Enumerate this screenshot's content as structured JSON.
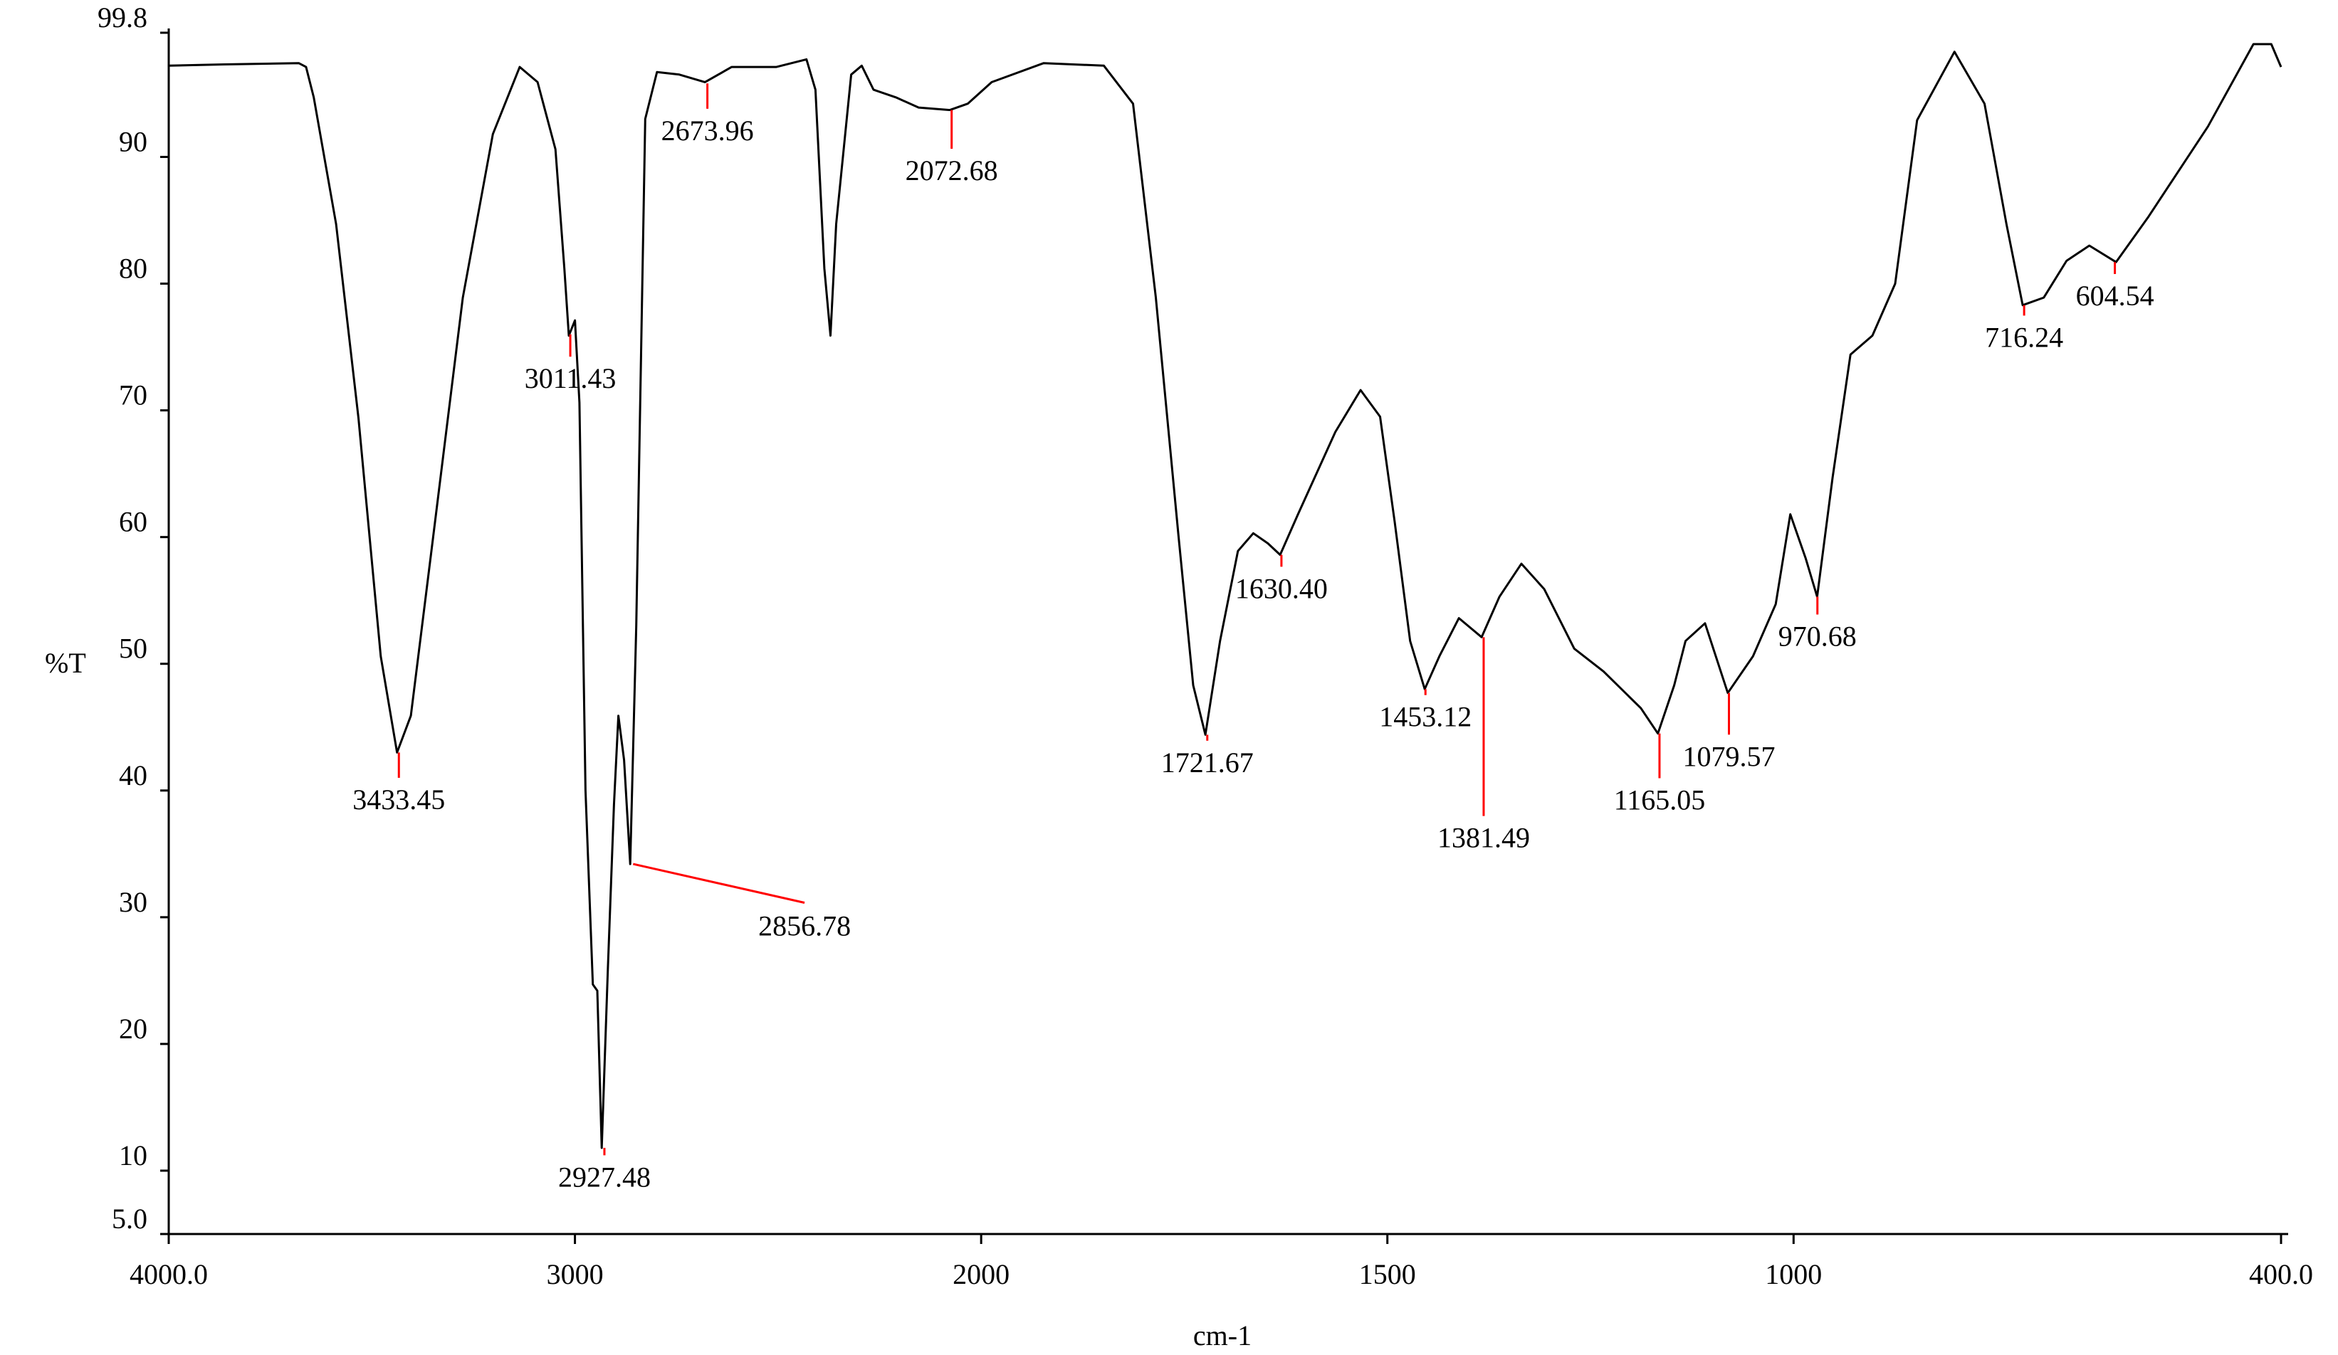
{
  "chart_data": {
    "type": "line",
    "x_label": "cm-1",
    "y_label": "%T",
    "color": "#000000",
    "peak_color": "#ff0000",
    "xlim": [
      4000,
      400
    ],
    "xscale": {
      "type": "split",
      "at": 2000,
      "factor": 2
    },
    "xticks": [
      {
        "value": 4000,
        "label": "4000.0"
      },
      3000,
      2000,
      1500,
      1000,
      {
        "value": 400,
        "label": "400.0"
      }
    ],
    "ylim": [
      5,
      99.8
    ],
    "yticks": [
      {
        "value": 5,
        "label": "5.0"
      },
      10,
      20,
      30,
      40,
      50,
      60,
      70,
      80,
      90,
      99.8
    ],
    "x": [
      4000,
      3864,
      3680,
      3662,
      3643,
      3588,
      3533,
      3478,
      3438,
      3404,
      3349,
      3276,
      3202,
      3136,
      3092,
      3048,
      3026,
      3015,
      3000,
      2989,
      2974,
      2956,
      2945,
      2934,
      2919,
      2904,
      2893,
      2879,
      2864,
      2849,
      2827,
      2798,
      2743,
      2680,
      2614,
      2504,
      2430,
      2408,
      2386,
      2371,
      2357,
      2320,
      2294,
      2265,
      2210,
      2154,
      2077,
      2033,
      1987,
      1923,
      1849,
      1813,
      1785,
      1757,
      1739,
      1724,
      1706,
      1684,
      1665,
      1647,
      1632,
      1610,
      1564,
      1533,
      1509,
      1491,
      1472,
      1454,
      1436,
      1412,
      1384,
      1362,
      1335,
      1307,
      1270,
      1234,
      1188,
      1167,
      1147,
      1133,
      1109,
      1081,
      1050,
      1022,
      1004,
      985,
      971,
      952,
      930,
      903,
      875,
      848,
      802,
      765,
      738,
      718,
      692,
      664,
      636,
      603,
      563,
      490,
      434,
      412,
      400
    ],
    "values": [
      97.2,
      97.3,
      97.4,
      97.1,
      94.7,
      84.7,
      69.4,
      50.6,
      43.0,
      45.9,
      60.0,
      78.9,
      91.8,
      97.1,
      95.9,
      90.6,
      81.2,
      75.9,
      77.1,
      70.6,
      40.0,
      24.7,
      24.2,
      11.8,
      25.9,
      38.9,
      45.9,
      42.4,
      34.2,
      53.0,
      93.0,
      96.7,
      96.5,
      95.9,
      97.1,
      97.1,
      97.7,
      95.3,
      81.2,
      75.9,
      84.7,
      96.5,
      97.2,
      95.3,
      94.7,
      93.9,
      93.7,
      94.2,
      95.9,
      97.4,
      97.2,
      94.2,
      78.9,
      60.0,
      48.3,
      44.4,
      51.8,
      58.9,
      60.3,
      59.5,
      58.6,
      61.8,
      68.3,
      71.6,
      69.5,
      61.2,
      51.8,
      48.0,
      50.6,
      53.6,
      52.1,
      55.3,
      57.9,
      55.9,
      51.2,
      49.4,
      46.5,
      44.5,
      48.3,
      51.8,
      53.2,
      47.7,
      50.6,
      54.7,
      61.8,
      58.3,
      55.3,
      64.7,
      74.4,
      75.9,
      80.0,
      92.9,
      98.3,
      94.2,
      84.7,
      78.3,
      78.9,
      81.8,
      83.0,
      81.7,
      85.3,
      92.4,
      98.9,
      98.9,
      97.1
    ],
    "peaks": [
      {
        "x": 3433.45,
        "label": "3433.45",
        "y": 43.0
      },
      {
        "x": 3011.43,
        "label": "3011.43",
        "y": 76.0
      },
      {
        "x": 2927.48,
        "label": "2927.48",
        "y": 11.8
      },
      {
        "x": 2856.78,
        "label": "2856.78",
        "y": 34.2
      },
      {
        "x": 2673.96,
        "label": "2673.96",
        "y": 95.8
      },
      {
        "x": 2072.68,
        "label": "2072.68",
        "y": 93.7
      },
      {
        "x": 1721.67,
        "label": "1721.67",
        "y": 44.4
      },
      {
        "x": 1630.4,
        "label": "1630.40",
        "y": 58.6
      },
      {
        "x": 1453.12,
        "label": "1453.12",
        "y": 48.0
      },
      {
        "x": 1381.49,
        "label": "1381.49",
        "y": 52.1
      },
      {
        "x": 1165.05,
        "label": "1165.05",
        "y": 44.5
      },
      {
        "x": 1079.57,
        "label": "1079.57",
        "y": 47.7
      },
      {
        "x": 970.68,
        "label": "970.68",
        "y": 55.3
      },
      {
        "x": 716.24,
        "label": "716.24",
        "y": 78.3
      },
      {
        "x": 604.54,
        "label": "604.54",
        "y": 81.7
      }
    ]
  }
}
